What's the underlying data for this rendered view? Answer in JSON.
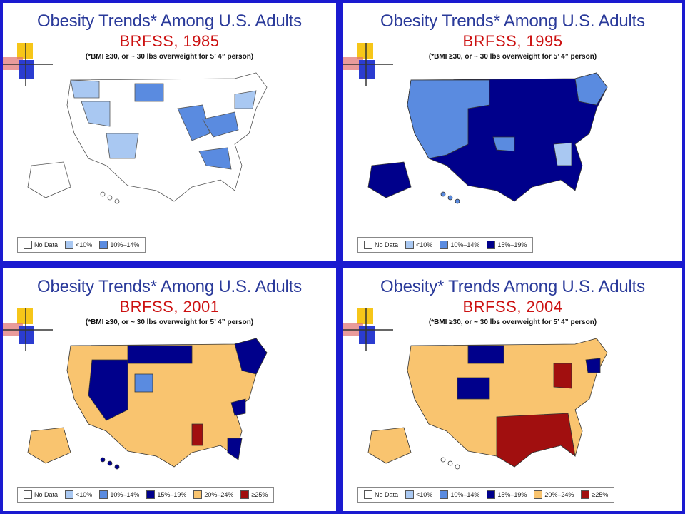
{
  "colors": {
    "nodata": "#ffffff",
    "lt10": "#a9c8f2",
    "p10_14": "#5a8be0",
    "p15_19": "#00008b",
    "p20_24": "#f9c46f",
    "ge25": "#a10f0f"
  },
  "note": "(*BMI ≥30, or ~ 30 lbs overweight for 5’ 4” person)",
  "panels": [
    {
      "title": "Obesity Trends* Among U.S. Adults",
      "subtitle": "BRFSS, 1985",
      "legend": [
        {
          "label": "No Data",
          "color": "nodata"
        },
        {
          "label": "<10%",
          "color": "lt10"
        },
        {
          "label": "10%–14%",
          "color": "p10_14"
        }
      ]
    },
    {
      "title": "Obesity Trends* Among U.S. Adults",
      "subtitle": "BRFSS, 1995",
      "legend": [
        {
          "label": "No Data",
          "color": "nodata"
        },
        {
          "label": "<10%",
          "color": "lt10"
        },
        {
          "label": "10%–14%",
          "color": "p10_14"
        },
        {
          "label": "15%–19%",
          "color": "p15_19"
        }
      ]
    },
    {
      "title": "Obesity Trends* Among U.S. Adults",
      "subtitle": "BRFSS, 2001",
      "legend": [
        {
          "label": "No Data",
          "color": "nodata"
        },
        {
          "label": "<10%",
          "color": "lt10"
        },
        {
          "label": "10%–14%",
          "color": "p10_14"
        },
        {
          "label": "15%–19%",
          "color": "p15_19"
        },
        {
          "label": "20%–24%",
          "color": "p20_24"
        },
        {
          "label": "≥25%",
          "color": "ge25"
        }
      ]
    },
    {
      "title": "Obesity* Trends Among U.S. Adults",
      "subtitle": "BRFSS, 2004",
      "legend": [
        {
          "label": "No Data",
          "color": "nodata"
        },
        {
          "label": "<10%",
          "color": "lt10"
        },
        {
          "label": "10%–14%",
          "color": "p10_14"
        },
        {
          "label": "15%–19%",
          "color": "p15_19"
        },
        {
          "label": "20%–24%",
          "color": "p20_24"
        },
        {
          "label": "≥25%",
          "color": "ge25"
        }
      ]
    }
  ]
}
